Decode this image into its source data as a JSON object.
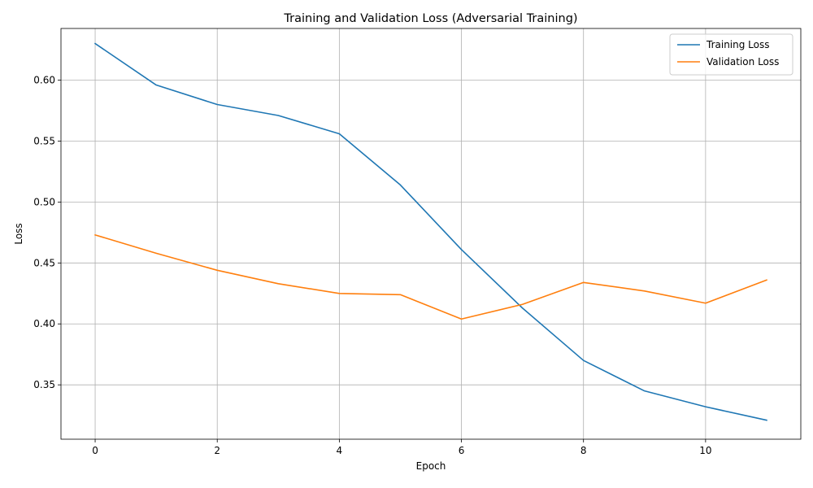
{
  "chart_data": {
    "type": "line",
    "title": "Training and Validation Loss (Adversarial Training)",
    "xlabel": "Epoch",
    "ylabel": "Loss",
    "x": [
      0,
      1,
      2,
      3,
      4,
      5,
      6,
      7,
      8,
      9,
      10,
      11
    ],
    "xlim": [
      -0.56,
      11.56
    ],
    "ylim": [
      0.3054,
      0.6424
    ],
    "xticks": [
      0,
      2,
      4,
      6,
      8,
      10
    ],
    "xtick_labels": [
      "0",
      "2",
      "4",
      "6",
      "8",
      "10"
    ],
    "yticks": [
      0.35,
      0.4,
      0.45,
      0.5,
      0.55,
      0.6
    ],
    "ytick_labels": [
      "0.35",
      "0.40",
      "0.45",
      "0.50",
      "0.55",
      "0.60"
    ],
    "grid": true,
    "legend_position": "top-right",
    "series": [
      {
        "name": "Training Loss",
        "color": "#1f77b4",
        "values": [
          0.63,
          0.596,
          0.58,
          0.571,
          0.556,
          0.514,
          0.461,
          0.413,
          0.37,
          0.345,
          0.332,
          0.321
        ]
      },
      {
        "name": "Validation Loss",
        "color": "#ff7f0e",
        "values": [
          0.473,
          0.458,
          0.444,
          0.433,
          0.425,
          0.424,
          0.404,
          0.416,
          0.434,
          0.427,
          0.417,
          0.436
        ]
      }
    ]
  }
}
